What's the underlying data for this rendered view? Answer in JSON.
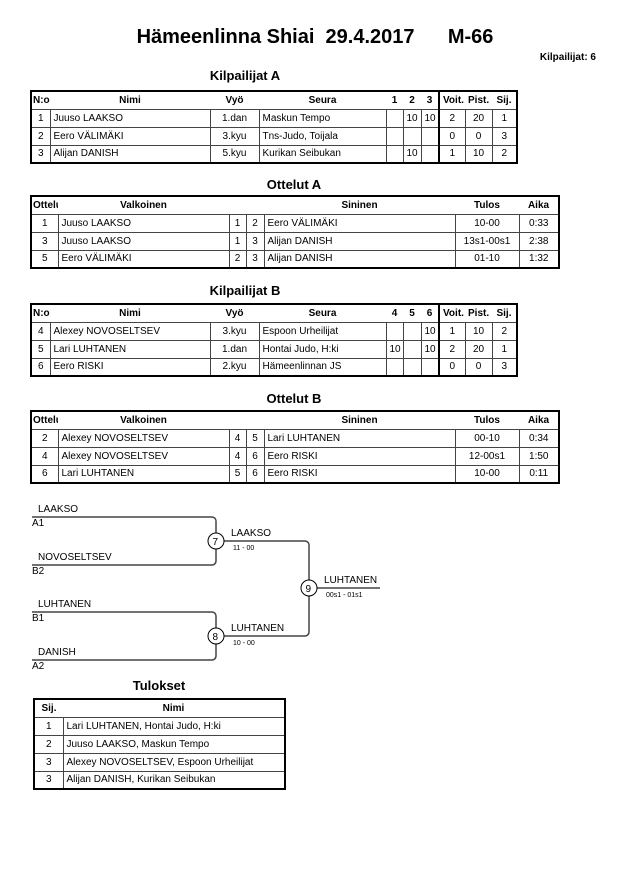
{
  "title": "Hämeenlinna Shiai  29.4.2017      M-66",
  "competitors_count": "Kilpailijat: 6",
  "pool_a": {
    "title": "Kilpailijat A",
    "headers": [
      "N:o",
      "Nimi",
      "Vyö",
      "Seura",
      "1",
      "2",
      "3",
      "Voit.",
      "Pist.",
      "Sij."
    ],
    "rows": [
      [
        "1",
        "Juuso LAAKSO",
        "1.dan",
        "Maskun Tempo",
        "",
        "10",
        "10",
        "2",
        "20",
        "1"
      ],
      [
        "2",
        "Eero VÄLIMÄKI",
        "3.kyu",
        "Tns-Judo, Toijala",
        "",
        "",
        "",
        "0",
        "0",
        "3"
      ],
      [
        "3",
        "Alijan DANISH",
        "5.kyu",
        "Kurikan Seibukan",
        "",
        "10",
        "",
        "1",
        "10",
        "2"
      ]
    ]
  },
  "matches_a": {
    "title": "Ottelut A",
    "headers": [
      "Ottelu",
      "Valkoinen",
      "Sininen",
      "Tulos",
      "Aika"
    ],
    "rows": [
      [
        "1",
        "Juuso LAAKSO",
        "1",
        "2",
        "Eero VÄLIMÄKI",
        "10-00",
        "0:33"
      ],
      [
        "3",
        "Juuso LAAKSO",
        "1",
        "3",
        "Alijan DANISH",
        "13s1-00s1",
        "2:38"
      ],
      [
        "5",
        "Eero VÄLIMÄKI",
        "2",
        "3",
        "Alijan DANISH",
        "01-10",
        "1:32"
      ]
    ]
  },
  "pool_b": {
    "title": "Kilpailijat B",
    "headers": [
      "N:o",
      "Nimi",
      "Vyö",
      "Seura",
      "4",
      "5",
      "6",
      "Voit.",
      "Pist.",
      "Sij."
    ],
    "rows": [
      [
        "4",
        "Alexey NOVOSELTSEV",
        "3.kyu",
        "Espoon Urheilijat",
        "",
        "",
        "10",
        "1",
        "10",
        "2"
      ],
      [
        "5",
        "Lari LUHTANEN",
        "1.dan",
        "Hontai Judo, H:ki",
        "10",
        "",
        "10",
        "2",
        "20",
        "1"
      ],
      [
        "6",
        "Eero RISKI",
        "2.kyu",
        "Hämeenlinnan JS",
        "",
        "",
        "",
        "0",
        "0",
        "3"
      ]
    ]
  },
  "matches_b": {
    "title": "Ottelut B",
    "headers": [
      "Ottelu",
      "Valkoinen",
      "Sininen",
      "Tulos",
      "Aika"
    ],
    "rows": [
      [
        "2",
        "Alexey NOVOSELTSEV",
        "4",
        "5",
        "Lari LUHTANEN",
        "00-10",
        "0:34"
      ],
      [
        "4",
        "Alexey NOVOSELTSEV",
        "4",
        "6",
        "Eero RISKI",
        "12-00s1",
        "1:50"
      ],
      [
        "6",
        "Lari LUHTANEN",
        "5",
        "6",
        "Eero RISKI",
        "10-00",
        "0:11"
      ]
    ]
  },
  "bracket": {
    "entrants": [
      {
        "name": "LAAKSO",
        "seed": "A1"
      },
      {
        "name": "NOVOSELTSEV",
        "seed": "B2"
      },
      {
        "name": "LUHTANEN",
        "seed": "B1"
      },
      {
        "name": "DANISH",
        "seed": "A2"
      }
    ],
    "semis": [
      {
        "match": "7",
        "winner": "LAAKSO",
        "score": "11 - 00"
      },
      {
        "match": "8",
        "winner": "LUHTANEN",
        "score": "10 - 00"
      }
    ],
    "final": {
      "match": "9",
      "winner": "LUHTANEN",
      "score": "00s1 - 01s1"
    }
  },
  "results": {
    "title": "Tulokset",
    "headers": [
      "Sij.",
      "Nimi"
    ],
    "rows": [
      [
        "1",
        "Lari LUHTANEN, Hontai Judo, H:ki"
      ],
      [
        "2",
        "Juuso LAAKSO, Maskun Tempo"
      ],
      [
        "3",
        "Alexey NOVOSELTSEV, Espoon Urheilijat"
      ],
      [
        "3",
        "Alijan DANISH, Kurikan Seibukan"
      ]
    ]
  }
}
